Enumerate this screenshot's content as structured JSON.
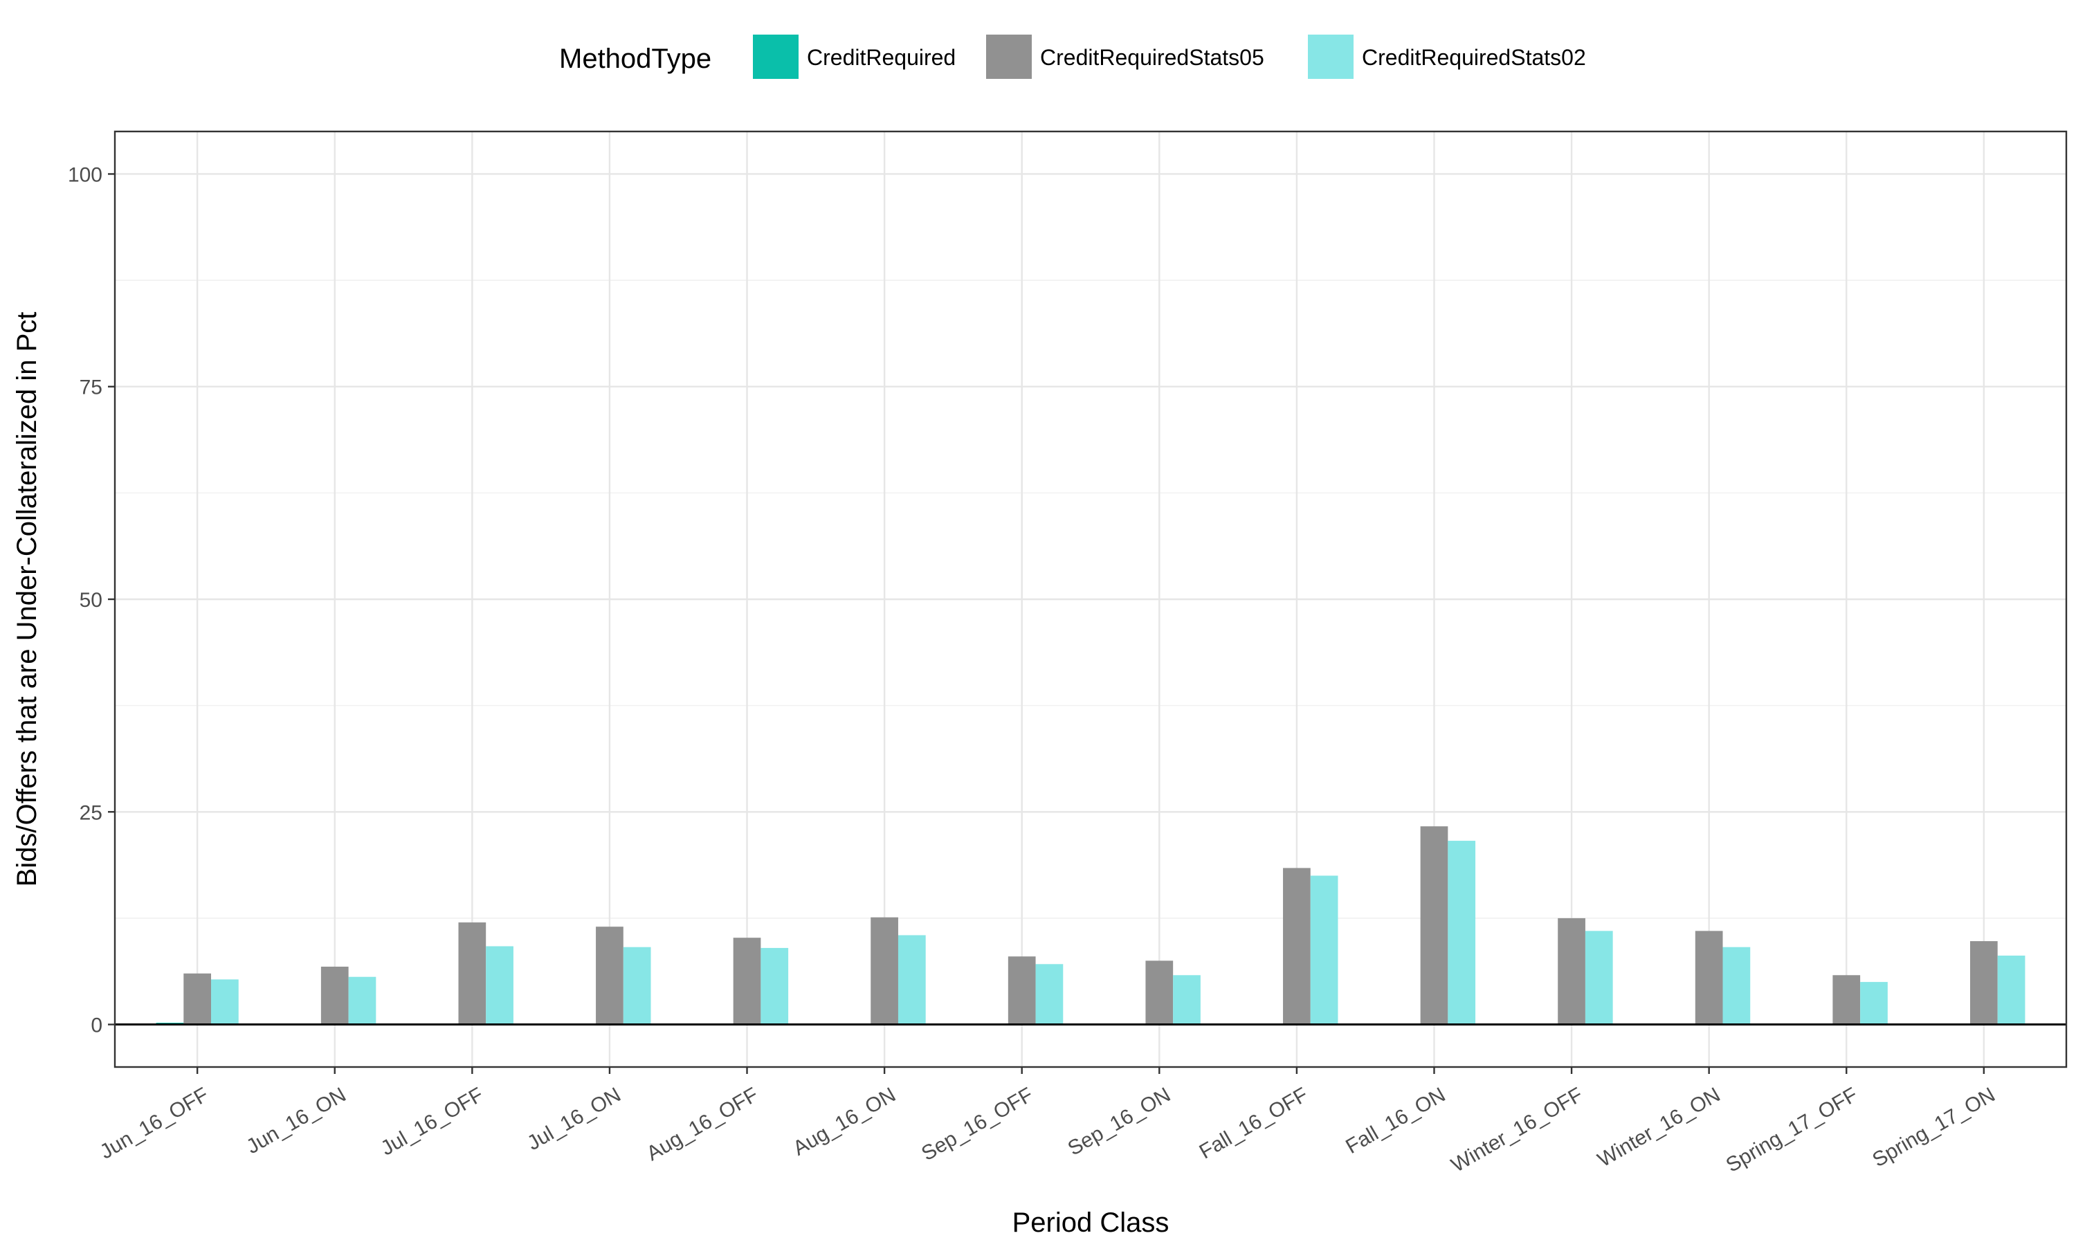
{
  "chart_data": {
    "type": "bar",
    "title": "",
    "xlabel": "Period Class",
    "ylabel": "Bids/Offers that are Under-Collateralized in Pct",
    "ylim": [
      -5,
      105
    ],
    "yticks": [
      0,
      25,
      50,
      75,
      100
    ],
    "yticks_labels": [
      "0",
      "25",
      "50",
      "75",
      "100"
    ],
    "grid": true,
    "legend": {
      "title": "MethodType",
      "position": "top"
    },
    "categories": [
      "Jun_16_OFF",
      "Jun_16_ON",
      "Jul_16_OFF",
      "Jul_16_ON",
      "Aug_16_OFF",
      "Aug_16_ON",
      "Sep_16_OFF",
      "Sep_16_ON",
      "Fall_16_OFF",
      "Fall_16_ON",
      "Winter_16_OFF",
      "Winter_16_ON",
      "Spring_17_OFF",
      "Spring_17_ON"
    ],
    "series": [
      {
        "name": "CreditRequired",
        "color": "#0abfaa",
        "values": [
          0.2,
          0,
          0,
          0,
          0,
          0,
          0,
          0,
          0,
          0,
          0,
          0,
          0,
          0
        ]
      },
      {
        "name": "CreditRequiredStats05",
        "color": "#919191",
        "values": [
          6.0,
          6.8,
          12.0,
          11.5,
          10.2,
          12.6,
          8.0,
          7.5,
          18.4,
          23.3,
          12.5,
          11.0,
          5.8,
          9.8
        ]
      },
      {
        "name": "CreditRequiredStats02",
        "color": "#87e6e6",
        "values": [
          5.3,
          5.6,
          9.2,
          9.1,
          9.0,
          10.5,
          7.1,
          5.8,
          17.5,
          21.6,
          11.0,
          9.1,
          5.0,
          8.1
        ]
      }
    ]
  }
}
